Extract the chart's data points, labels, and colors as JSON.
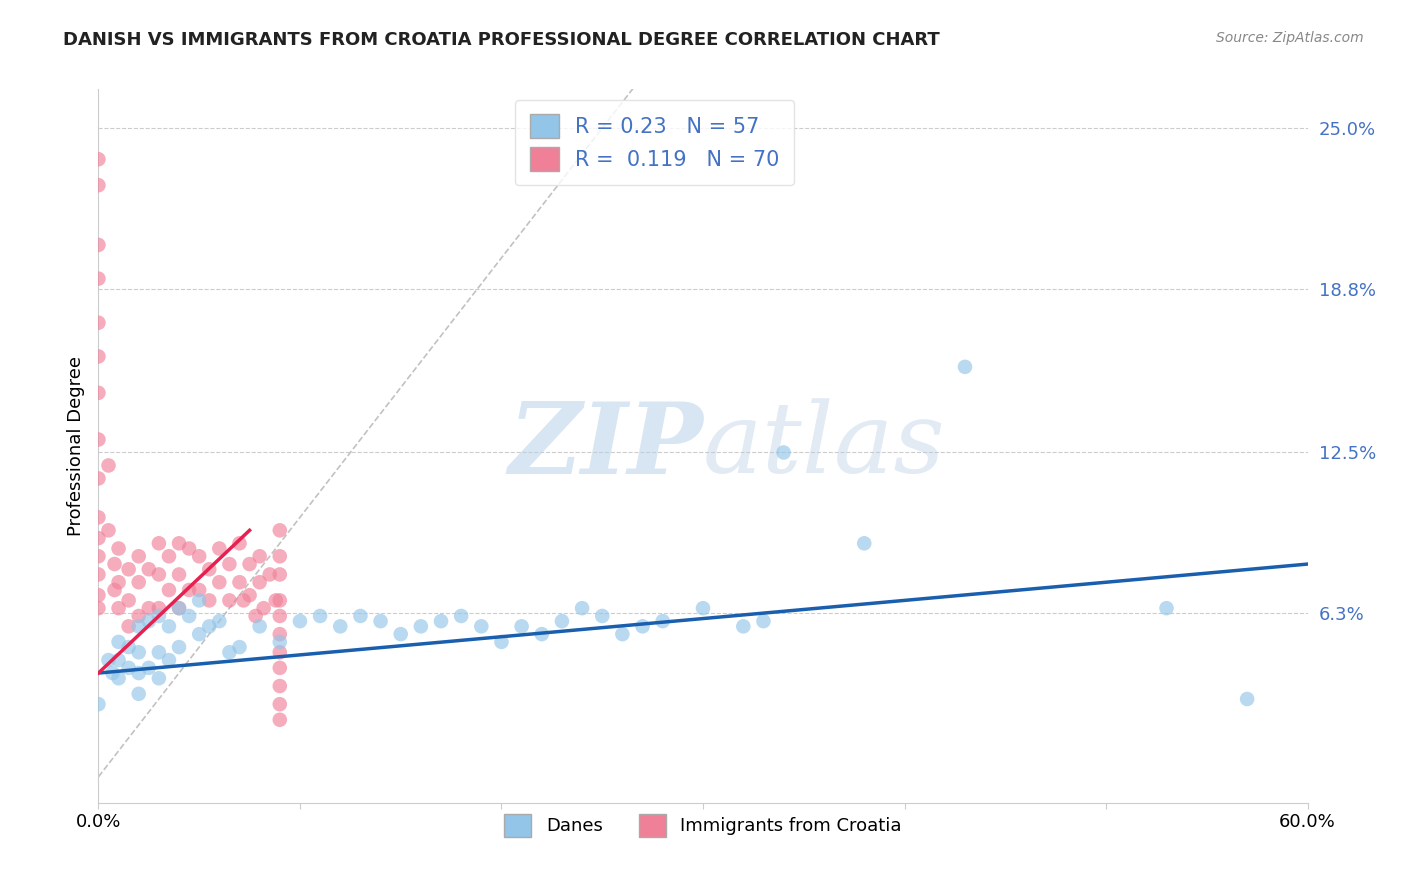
{
  "title": "DANISH VS IMMIGRANTS FROM CROATIA PROFESSIONAL DEGREE CORRELATION CHART",
  "source": "Source: ZipAtlas.com",
  "ylabel": "Professional Degree",
  "xlim": [
    0.0,
    0.6
  ],
  "ylim": [
    -0.01,
    0.265
  ],
  "ytick_vals": [
    0.063,
    0.125,
    0.188,
    0.25
  ],
  "ytick_labels": [
    "6.3%",
    "12.5%",
    "18.8%",
    "25.0%"
  ],
  "xtick_vals": [
    0.0,
    0.1,
    0.2,
    0.3,
    0.4,
    0.5,
    0.6
  ],
  "xtick_labels": [
    "0.0%",
    "",
    "",
    "",
    "",
    "",
    "60.0%"
  ],
  "color_danes": "#92C5E8",
  "color_croatia": "#F08098",
  "color_line_danes": "#1A5FAD",
  "color_line_croatia": "#E82050",
  "color_diag": "#CCCCCC",
  "background_color": "#FFFFFF",
  "danes_R": 0.23,
  "danes_N": 57,
  "croatia_R": 0.119,
  "croatia_N": 70,
  "danes_line_x0": 0.0,
  "danes_line_y0": 0.04,
  "danes_line_x1": 0.6,
  "danes_line_y1": 0.082,
  "croatia_line_x0": 0.0,
  "croatia_line_y0": 0.04,
  "croatia_line_x1": 0.075,
  "croatia_line_y1": 0.095,
  "danes_scatter_x": [
    0.0,
    0.005,
    0.007,
    0.01,
    0.01,
    0.01,
    0.015,
    0.015,
    0.02,
    0.02,
    0.02,
    0.02,
    0.025,
    0.025,
    0.03,
    0.03,
    0.03,
    0.035,
    0.035,
    0.04,
    0.04,
    0.045,
    0.05,
    0.05,
    0.055,
    0.06,
    0.065,
    0.07,
    0.08,
    0.09,
    0.1,
    0.11,
    0.12,
    0.13,
    0.14,
    0.15,
    0.16,
    0.17,
    0.18,
    0.19,
    0.2,
    0.21,
    0.22,
    0.23,
    0.24,
    0.25,
    0.26,
    0.27,
    0.28,
    0.3,
    0.32,
    0.33,
    0.34,
    0.38,
    0.43,
    0.53,
    0.57
  ],
  "danes_scatter_y": [
    0.028,
    0.045,
    0.04,
    0.038,
    0.045,
    0.052,
    0.042,
    0.05,
    0.058,
    0.048,
    0.04,
    0.032,
    0.06,
    0.042,
    0.062,
    0.048,
    0.038,
    0.058,
    0.045,
    0.065,
    0.05,
    0.062,
    0.068,
    0.055,
    0.058,
    0.06,
    0.048,
    0.05,
    0.058,
    0.052,
    0.06,
    0.062,
    0.058,
    0.062,
    0.06,
    0.055,
    0.058,
    0.06,
    0.062,
    0.058,
    0.052,
    0.058,
    0.055,
    0.06,
    0.065,
    0.062,
    0.055,
    0.058,
    0.06,
    0.065,
    0.058,
    0.06,
    0.125,
    0.09,
    0.158,
    0.065,
    0.03
  ],
  "croatia_scatter_x": [
    0.0,
    0.0,
    0.0,
    0.0,
    0.0,
    0.0,
    0.0,
    0.0,
    0.0,
    0.0,
    0.0,
    0.0,
    0.0,
    0.0,
    0.0,
    0.005,
    0.005,
    0.008,
    0.008,
    0.01,
    0.01,
    0.01,
    0.015,
    0.015,
    0.015,
    0.02,
    0.02,
    0.02,
    0.025,
    0.025,
    0.03,
    0.03,
    0.03,
    0.035,
    0.035,
    0.04,
    0.04,
    0.04,
    0.045,
    0.045,
    0.05,
    0.05,
    0.055,
    0.055,
    0.06,
    0.06,
    0.065,
    0.065,
    0.07,
    0.07,
    0.072,
    0.075,
    0.075,
    0.078,
    0.08,
    0.08,
    0.082,
    0.085,
    0.088,
    0.09,
    0.09,
    0.09,
    0.09,
    0.09,
    0.09,
    0.09,
    0.09,
    0.09,
    0.09,
    0.09
  ],
  "croatia_scatter_y": [
    0.238,
    0.228,
    0.205,
    0.192,
    0.175,
    0.162,
    0.148,
    0.13,
    0.115,
    0.1,
    0.092,
    0.085,
    0.078,
    0.07,
    0.065,
    0.12,
    0.095,
    0.082,
    0.072,
    0.088,
    0.075,
    0.065,
    0.08,
    0.068,
    0.058,
    0.085,
    0.075,
    0.062,
    0.08,
    0.065,
    0.09,
    0.078,
    0.065,
    0.085,
    0.072,
    0.09,
    0.078,
    0.065,
    0.088,
    0.072,
    0.085,
    0.072,
    0.08,
    0.068,
    0.088,
    0.075,
    0.082,
    0.068,
    0.09,
    0.075,
    0.068,
    0.082,
    0.07,
    0.062,
    0.085,
    0.075,
    0.065,
    0.078,
    0.068,
    0.095,
    0.085,
    0.078,
    0.068,
    0.062,
    0.055,
    0.048,
    0.042,
    0.035,
    0.028,
    0.022
  ]
}
